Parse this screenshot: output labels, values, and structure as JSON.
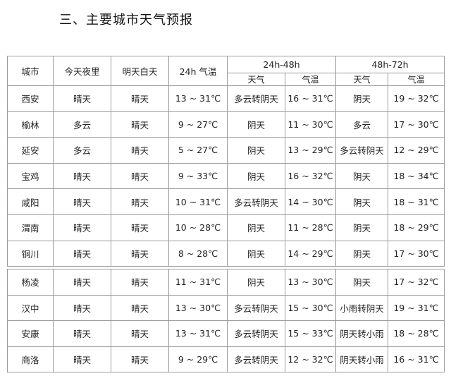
{
  "title": "三、主要城市天气预报",
  "header": {
    "city": "城市",
    "tonight": "今天夜里",
    "tomorrow_day": "明天白天",
    "temp_24h": "24h 气温",
    "group_24_48": "24h-48h",
    "group_48_72": "48h-72h",
    "weather": "天气",
    "temperature": "气温"
  },
  "table1": [
    {
      "city": "西安",
      "tonight": "晴天",
      "day": "晴天",
      "t24": "13 ~ 31℃",
      "w48": "多云转阴天",
      "t48": "16 ~ 31℃",
      "w72": "阴天",
      "t72": "19 ~ 32℃"
    },
    {
      "city": "榆林",
      "tonight": "多云",
      "day": "晴天",
      "t24": "9 ~ 27℃",
      "w48": "阴天",
      "t48": "11 ~ 30℃",
      "w72": "多云",
      "t72": "17 ~ 30℃"
    },
    {
      "city": "延安",
      "tonight": "多云",
      "day": "晴天",
      "t24": "5 ~ 27℃",
      "w48": "阴天",
      "t48": "13 ~ 29℃",
      "w72": "多云转阴天",
      "t72": "12 ~ 29℃"
    },
    {
      "city": "宝鸡",
      "tonight": "晴天",
      "day": "晴天",
      "t24": "9 ~ 33℃",
      "w48": "阴天",
      "t48": "16 ~ 32℃",
      "w72": "阴天",
      "t72": "18 ~ 34℃"
    },
    {
      "city": "咸阳",
      "tonight": "晴天",
      "day": "晴天",
      "t24": "10 ~ 31℃",
      "w48": "多云转阴天",
      "t48": "14 ~ 30℃",
      "w72": "阴天",
      "t72": "18 ~ 31℃"
    },
    {
      "city": "渭南",
      "tonight": "晴天",
      "day": "晴天",
      "t24": "10 ~ 28℃",
      "w48": "阴天",
      "t48": "11 ~ 28℃",
      "w72": "阴天",
      "t72": "18 ~ 29℃"
    },
    {
      "city": "铜川",
      "tonight": "晴天",
      "day": "晴天",
      "t24": "8 ~ 28℃",
      "w48": "阴天",
      "t48": "14 ~ 29℃",
      "w72": "阴天",
      "t72": "17 ~ 30℃"
    }
  ],
  "table2": [
    {
      "city": "杨凌",
      "tonight": "晴天",
      "day": "晴天",
      "t24": "11 ~ 31℃",
      "w48": "阴天",
      "t48": "13 ~ 30℃",
      "w72": "阴天",
      "t72": "17 ~ 32℃"
    },
    {
      "city": "汉中",
      "tonight": "晴天",
      "day": "晴天",
      "t24": "13 ~ 30℃",
      "w48": "多云转阴天",
      "t48": "15 ~ 30℃",
      "w72": "小雨转阴天",
      "t72": "19 ~ 31℃"
    },
    {
      "city": "安康",
      "tonight": "晴天",
      "day": "晴天",
      "t24": "13 ~ 31℃",
      "w48": "多云转阴天",
      "t48": "15 ~ 33℃",
      "w72": "阴天转小雨",
      "t72": "18 ~ 28℃"
    },
    {
      "city": "商洛",
      "tonight": "晴天",
      "day": "晴天",
      "t24": "9 ~ 29℃",
      "w48": "多云转阴天",
      "t48": "12 ~ 32℃",
      "w72": "阴天转小雨",
      "t72": "16 ~ 31℃"
    }
  ]
}
